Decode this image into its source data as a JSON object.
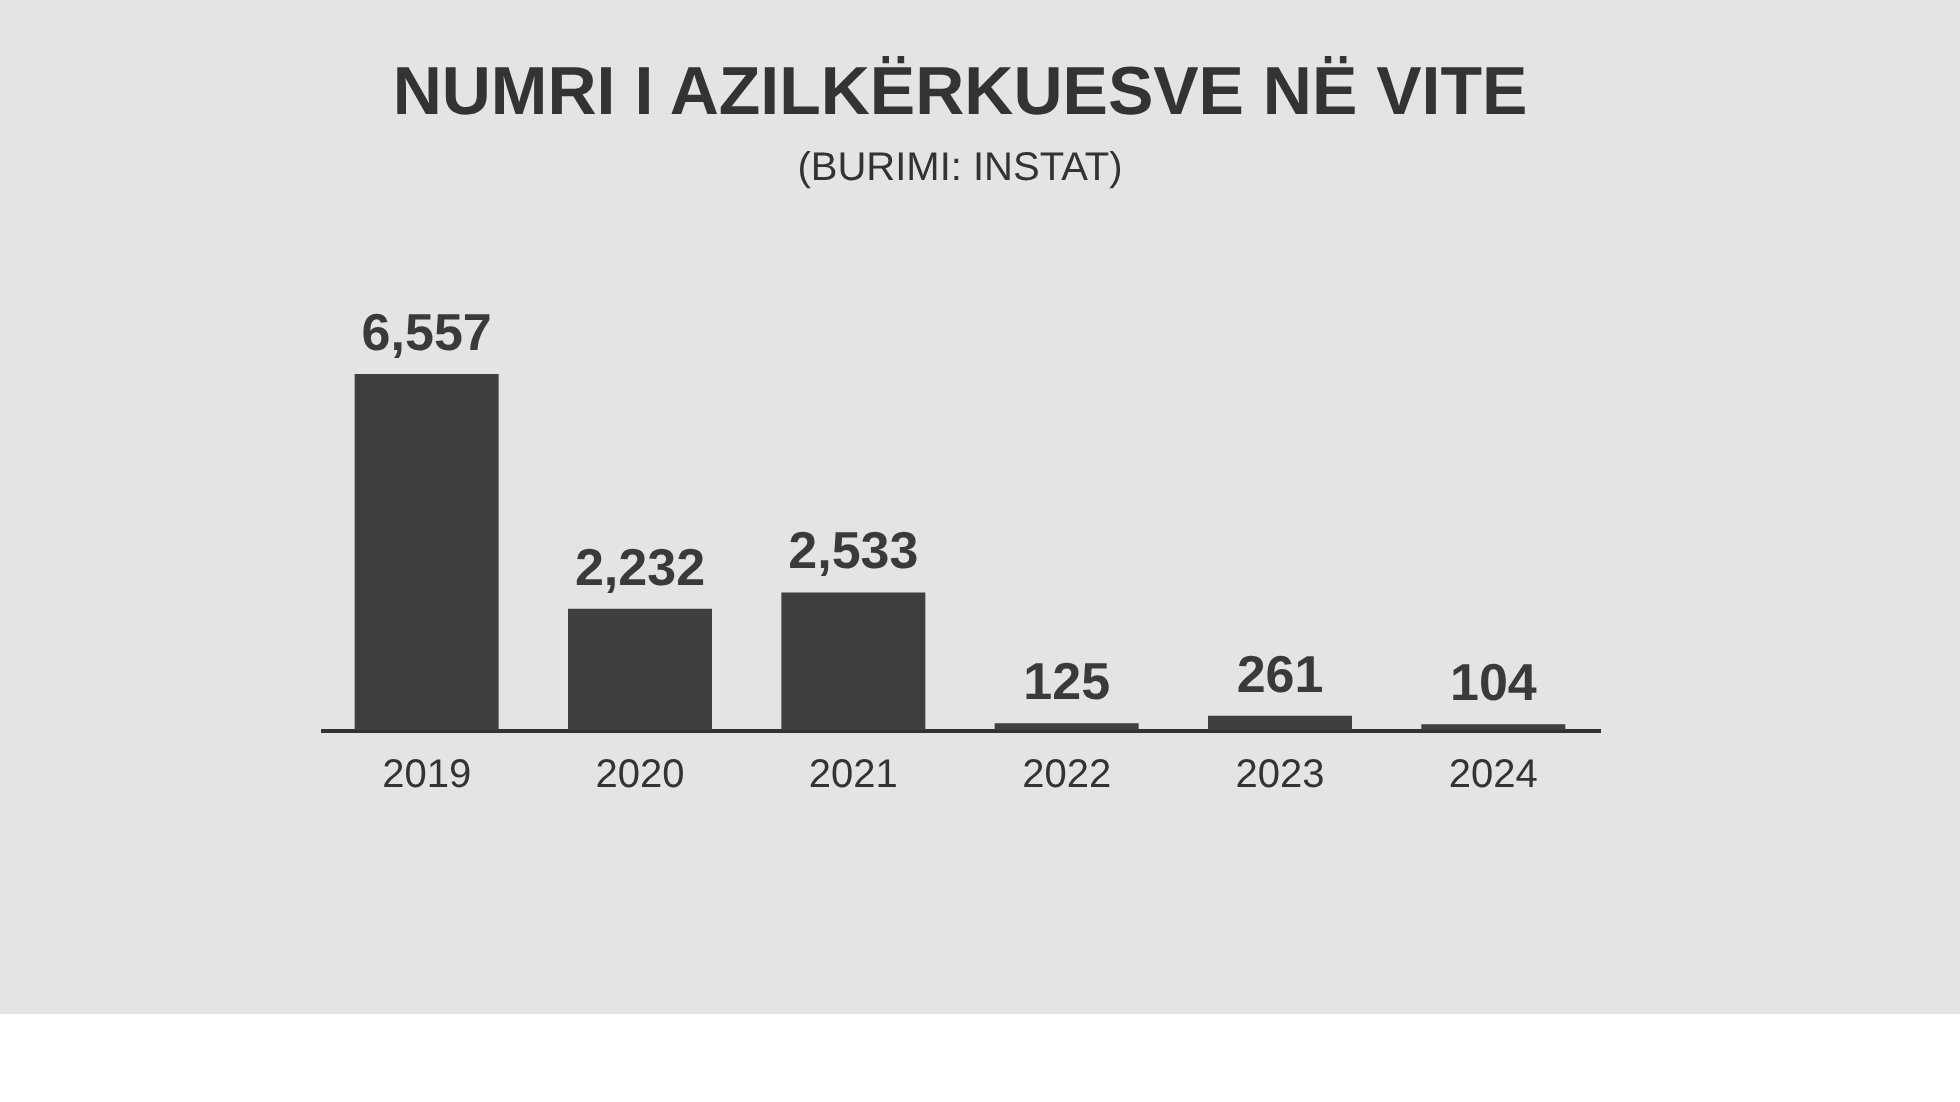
{
  "chart_data": {
    "type": "bar",
    "title": "NUMRI I AZILKËRKUESVE NË VITE",
    "subtitle": "(BURIMI: INSTAT)",
    "categories": [
      "2019",
      "2020",
      "2021",
      "2022",
      "2023",
      "2024"
    ],
    "values": [
      6557,
      2232,
      2533,
      125,
      261,
      104
    ],
    "value_labels": [
      "6,557",
      "2,232",
      "2,533",
      "125",
      "261",
      "104"
    ],
    "color": "#3f3f3f"
  }
}
